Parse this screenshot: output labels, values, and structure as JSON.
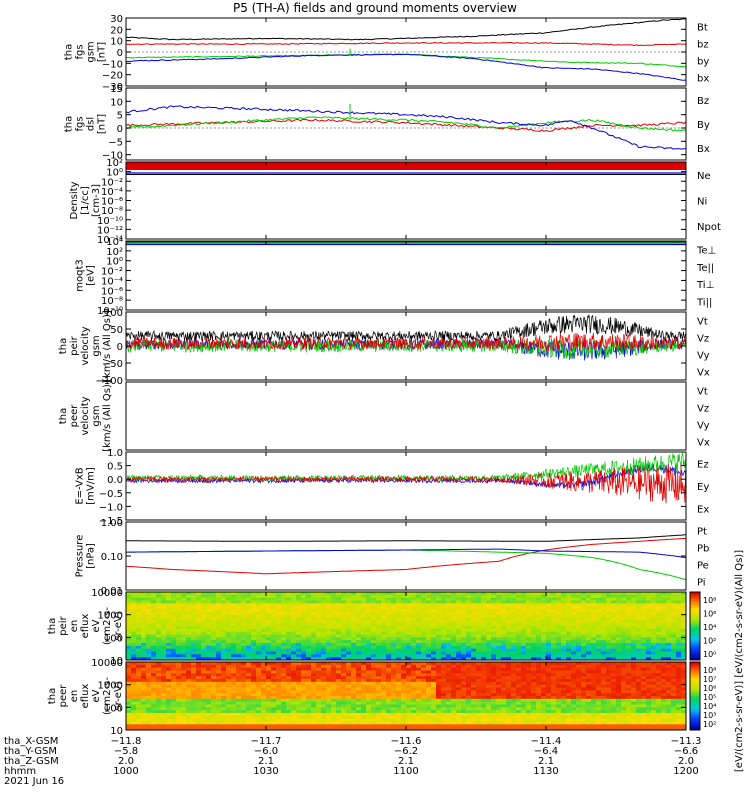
{
  "title": "P5 (TH-A) fields and ground moments overview",
  "date_label": "2021 Jun 16",
  "chart_data": [
    {
      "type": "line",
      "ylabel": [
        "tha",
        "fgs",
        "gsm",
        "[nT]"
      ],
      "ylim": [
        -30,
        30
      ],
      "yticks": [
        30,
        20,
        10,
        0,
        -10,
        -20,
        -30
      ],
      "legend": [
        {
          "name": "Bt",
          "color": "#000000"
        },
        {
          "name": "bz",
          "color": "#e00000"
        },
        {
          "name": "by",
          "color": "#00cc00"
        },
        {
          "name": "bx",
          "color": "#0000e0"
        }
      ],
      "series": [
        {
          "name": "Bt",
          "color": "#000000",
          "x": [
            1000,
            1010,
            1030,
            1050,
            1100,
            1115,
            1130,
            1140,
            1150,
            1155,
            1200
          ],
          "y": [
            13,
            11,
            12,
            11,
            12,
            14,
            17,
            22,
            26,
            28,
            29
          ]
        },
        {
          "name": "bz",
          "color": "#e00000",
          "x": [
            1000,
            1030,
            1100,
            1130,
            1150,
            1200
          ],
          "y": [
            7,
            7,
            8,
            8,
            6,
            7
          ]
        },
        {
          "name": "by",
          "color": "#00cc00",
          "x": [
            1000,
            1020,
            1040,
            1100,
            1120,
            1135,
            1150,
            1200
          ],
          "y": [
            -5,
            -4,
            -3,
            -2,
            -6,
            -9,
            -10,
            -13
          ]
        },
        {
          "name": "bx",
          "color": "#0000e0",
          "x": [
            1000,
            1020,
            1040,
            1100,
            1115,
            1130,
            1140,
            1150,
            1200
          ],
          "y": [
            -8,
            -6,
            -3,
            -2,
            -6,
            -14,
            -15,
            -19,
            -25
          ]
        }
      ]
    },
    {
      "type": "line",
      "ylabel": [
        "tha",
        "fgs",
        "dsl",
        "[nT]"
      ],
      "ylim": [
        -12,
        15
      ],
      "yticks": [
        15,
        10,
        5,
        0,
        -5,
        -10
      ],
      "legend": [
        {
          "name": "Bz",
          "color": "#e00000"
        },
        {
          "name": "By",
          "color": "#00cc00"
        },
        {
          "name": "Bx",
          "color": "#0000e0"
        }
      ],
      "series": [
        {
          "name": "Bz",
          "color": "#e00000",
          "x": [
            1000,
            1020,
            1040,
            1100,
            1110,
            1120,
            1130,
            1140,
            1150,
            1200
          ],
          "y": [
            1,
            2,
            3,
            2,
            1,
            0,
            -1,
            1,
            1,
            2
          ]
        },
        {
          "name": "By",
          "color": "#00cc00",
          "x": [
            1000,
            1020,
            1040,
            1100,
            1110,
            1120,
            1130,
            1140,
            1150,
            1200
          ],
          "y": [
            0,
            2,
            4,
            3,
            2,
            0,
            2,
            3,
            0,
            -1
          ]
        },
        {
          "name": "Bx",
          "color": "#0000e0",
          "x": [
            1000,
            1010,
            1030,
            1045,
            1100,
            1110,
            1120,
            1130,
            1135,
            1140,
            1150,
            1200
          ],
          "y": [
            6,
            8,
            7,
            6,
            5,
            4,
            2,
            1,
            3,
            0,
            -7,
            -8
          ]
        }
      ]
    },
    {
      "type": "line",
      "ylabel": [
        "Density",
        "[1/cc]",
        "[cm-3]"
      ],
      "yscale": "log",
      "ylim": [
        1e-14,
        100.0
      ],
      "ytick_labels": [
        "10²",
        "10⁰",
        "10⁻²",
        "10⁻⁴",
        "10⁻⁶",
        "10⁻⁸",
        "10⁻¹⁰",
        "10⁻¹²",
        "10⁻¹⁴"
      ],
      "legend": [
        {
          "name": "Ne",
          "color": "#e00000"
        },
        {
          "name": "Ni",
          "color": "#000000"
        },
        {
          "name": "Npot",
          "color": "#0000e0"
        }
      ]
    },
    {
      "type": "line",
      "ylabel": [
        "moqt3",
        "[eV]"
      ],
      "yscale": "log",
      "ylim": [
        1e-10,
        10000.0
      ],
      "ytick_labels": [
        "10⁴",
        "10²",
        "10⁰",
        "10⁻²",
        "10⁻⁴",
        "10⁻⁶",
        "10⁻⁸",
        "10⁻¹⁰"
      ],
      "legend": [
        {
          "name": "Te⊥",
          "color": "#e00000"
        },
        {
          "name": "Te||",
          "color": "#000000"
        },
        {
          "name": "Ti⊥",
          "color": "#00cc00"
        },
        {
          "name": "Ti||",
          "color": "#00cc00"
        }
      ]
    },
    {
      "type": "line",
      "ylabel": [
        "tha",
        "peir",
        "velocity",
        "gsm",
        "[km/s (All Qs)]"
      ],
      "ylim": [
        -100,
        100
      ],
      "yticks": [
        100,
        50,
        0,
        -50,
        -100
      ],
      "legend": [
        {
          "name": "Vt",
          "color": "#000000"
        },
        {
          "name": "Vz",
          "color": "#e00000"
        },
        {
          "name": "Vy",
          "color": "#00cc00"
        },
        {
          "name": "Vx",
          "color": "#0000e0"
        }
      ]
    },
    {
      "type": "line",
      "ylabel": [
        "tha",
        "peer",
        "velocity",
        "gsm",
        "[km/s (All Qs)]"
      ],
      "legend": [
        {
          "name": "Vt",
          "color": "#000000"
        },
        {
          "name": "Vz",
          "color": "#e00000"
        },
        {
          "name": "Vy",
          "color": "#00cc00"
        },
        {
          "name": "Vx",
          "color": "#0000e0"
        }
      ]
    },
    {
      "type": "line",
      "ylabel": [
        "E=-VxB",
        "[mV/m]"
      ],
      "ylim": [
        -1.5,
        1.0
      ],
      "yticks": [
        1.0,
        0.5,
        0.0,
        -0.5,
        -1.0,
        -1.5
      ],
      "ytick_labels": [
        "1.0",
        "0.5",
        "0.0",
        "−0.5",
        "−1.0",
        "−1.5"
      ],
      "legend": [
        {
          "name": "Ez",
          "color": "#e00000"
        },
        {
          "name": "Ey",
          "color": "#00cc00"
        },
        {
          "name": "Ex",
          "color": "#0000e0"
        }
      ]
    },
    {
      "type": "line",
      "ylabel": [
        "Pressure",
        "[nPa]"
      ],
      "yscale": "log",
      "ylim": [
        0.01,
        1.0
      ],
      "ytick_labels": [
        "1.00",
        "0.10",
        "0.01"
      ],
      "legend": [
        {
          "name": "Pt",
          "color": "#000000"
        },
        {
          "name": "Pb",
          "color": "#e00000"
        },
        {
          "name": "Pe",
          "color": "#00cc00"
        },
        {
          "name": "Pi",
          "color": "#0000e0"
        }
      ],
      "series": [
        {
          "name": "Pt",
          "color": "#000000",
          "x": [
            1000,
            1030,
            1100,
            1130,
            1150,
            1200
          ],
          "y": [
            0.28,
            0.27,
            0.28,
            0.27,
            0.34,
            0.42
          ]
        },
        {
          "name": "Pb",
          "color": "#e00000",
          "x": [
            1000,
            1010,
            1030,
            1100,
            1120,
            1130,
            1140,
            1150,
            1200
          ],
          "y": [
            0.05,
            0.04,
            0.03,
            0.04,
            0.07,
            0.15,
            0.22,
            0.27,
            0.33
          ]
        },
        {
          "name": "Pe",
          "color": "#00cc00",
          "x": [
            1000,
            1030,
            1100,
            1120,
            1130,
            1140,
            1150,
            1200
          ],
          "y": [
            0.13,
            0.14,
            0.15,
            0.13,
            0.12,
            0.09,
            0.04,
            0.02
          ]
        },
        {
          "name": "Pi",
          "color": "#0000e0",
          "x": [
            1000,
            1030,
            1100,
            1120,
            1130,
            1150,
            1200
          ],
          "y": [
            0.13,
            0.14,
            0.15,
            0.16,
            0.14,
            0.13,
            0.09
          ]
        }
      ]
    },
    {
      "type": "heatmap",
      "ylabel": [
        "tha",
        "peir",
        "en",
        "eflux",
        "eV",
        "(cm2-s-",
        "sr-eV)"
      ],
      "yscale": "log",
      "ylim": [
        10,
        20000
      ],
      "ytick_labels": [
        "10000",
        "1000",
        "100",
        "10"
      ],
      "colorbar_ticks": [
        "10⁸",
        "10⁶",
        "10⁴",
        "10²",
        "10⁰"
      ]
    },
    {
      "type": "heatmap",
      "ylabel": [
        "tha",
        "peer",
        "en",
        "eflux",
        "eV",
        "(cm2-s-",
        "sr-eV)"
      ],
      "yscale": "log",
      "ylim": [
        7,
        20000
      ],
      "ytick_labels": [
        "10000",
        "1000",
        "100",
        "10"
      ],
      "colorbar_ticks": [
        "10⁸",
        "10⁷",
        "10⁶",
        "10⁵",
        "10⁴",
        "10³",
        "10²"
      ]
    }
  ],
  "colorbar_label": "[eV/(cm2-s-sr-eV)] [eV/(cm2-s-sr-eV)(All Qs)]",
  "x_axis": {
    "row_labels": [
      "tha_X-GSM",
      "tha_Y-GSM",
      "tha_Z-GSM",
      "hhmm"
    ],
    "columns": [
      {
        "x": "-11.8",
        "y": "-5.8",
        "z": "2.0",
        "t": "1000"
      },
      {
        "x": "-11.7",
        "y": "-6.0",
        "z": "2.1",
        "t": "1030"
      },
      {
        "x": "-11.6",
        "y": "-6.2",
        "z": "2.1",
        "t": "1100"
      },
      {
        "x": "-11.4",
        "y": "-6.4",
        "z": "2.1",
        "t": "1130"
      },
      {
        "x": "-11.3",
        "y": "-6.6",
        "z": "2.0",
        "t": "1200"
      }
    ]
  }
}
